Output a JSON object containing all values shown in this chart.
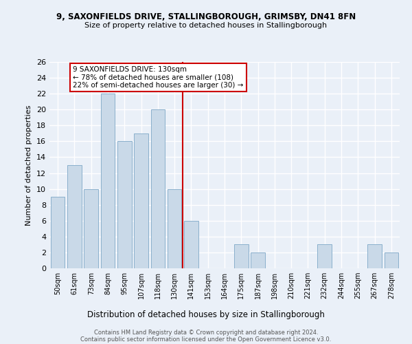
{
  "title": "9, SAXONFIELDS DRIVE, STALLINGBOROUGH, GRIMSBY, DN41 8FN",
  "subtitle": "Size of property relative to detached houses in Stallingborough",
  "xlabel": "Distribution of detached houses by size in Stallingborough",
  "ylabel": "Number of detached properties",
  "categories": [
    "50sqm",
    "61sqm",
    "73sqm",
    "84sqm",
    "95sqm",
    "107sqm",
    "118sqm",
    "130sqm",
    "141sqm",
    "153sqm",
    "164sqm",
    "175sqm",
    "187sqm",
    "198sqm",
    "210sqm",
    "221sqm",
    "232sqm",
    "244sqm",
    "255sqm",
    "267sqm",
    "278sqm"
  ],
  "values": [
    9,
    13,
    10,
    22,
    16,
    17,
    20,
    10,
    6,
    0,
    0,
    3,
    2,
    0,
    0,
    0,
    3,
    0,
    0,
    3,
    2
  ],
  "bar_color": "#c9d9e8",
  "bar_edge_color": "#8ab0cc",
  "property_index": 7,
  "vline_color": "#cc0000",
  "annotation_text": "9 SAXONFIELDS DRIVE: 130sqm\n← 78% of detached houses are smaller (108)\n22% of semi-detached houses are larger (30) →",
  "annotation_box_color": "#ffffff",
  "annotation_box_edge": "#cc0000",
  "ylim": [
    0,
    26
  ],
  "yticks": [
    0,
    2,
    4,
    6,
    8,
    10,
    12,
    14,
    16,
    18,
    20,
    22,
    24,
    26
  ],
  "background_color": "#eaf0f8",
  "grid_color": "#ffffff",
  "footer1": "Contains HM Land Registry data © Crown copyright and database right 2024.",
  "footer2": "Contains public sector information licensed under the Open Government Licence v3.0."
}
